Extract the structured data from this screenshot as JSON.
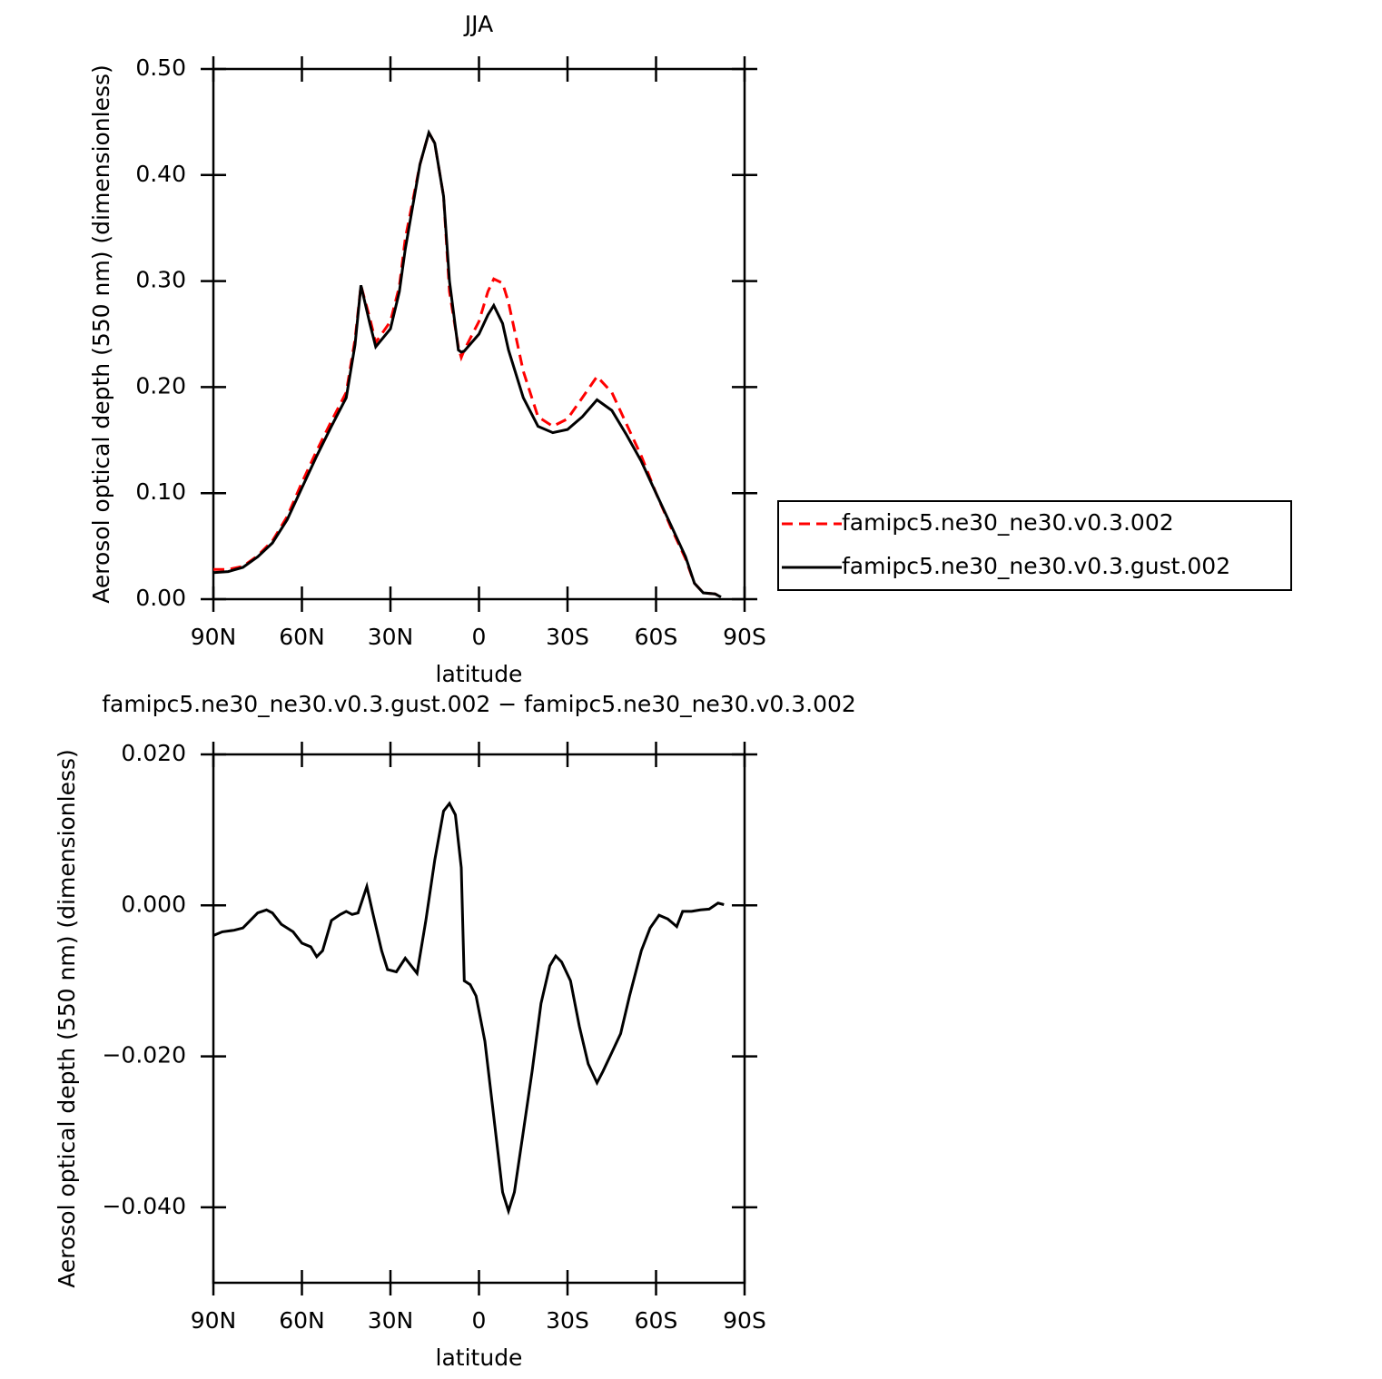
{
  "chart_data": [
    {
      "type": "line",
      "title": "JJA",
      "xlabel": "latitude",
      "ylabel": "Aerosol optical depth (550 nm) (dimensionless)",
      "x": [
        90,
        85,
        80,
        75,
        70,
        65,
        60,
        55,
        50,
        45,
        42,
        40,
        37,
        35,
        30,
        27,
        25,
        20,
        17,
        15,
        12,
        10,
        7,
        6,
        5,
        0,
        -3,
        -5,
        -8,
        -10,
        -15,
        -20,
        -25,
        -30,
        -35,
        -40,
        -45,
        -50,
        -55,
        -60,
        -65,
        -70,
        -73,
        -76,
        -80,
        -82
      ],
      "series": [
        {
          "name": "famipc5.ne30_ne30.v0.3.002",
          "color": "#ff0000",
          "dashed": true,
          "values": [
            0.028,
            0.028,
            0.031,
            0.041,
            0.055,
            0.078,
            0.11,
            0.14,
            0.168,
            0.195,
            0.245,
            0.296,
            0.265,
            0.242,
            0.262,
            0.295,
            0.34,
            0.41,
            0.44,
            0.43,
            0.38,
            0.29,
            0.238,
            0.228,
            0.235,
            0.262,
            0.29,
            0.302,
            0.298,
            0.28,
            0.215,
            0.172,
            0.163,
            0.17,
            0.19,
            0.21,
            0.195,
            0.165,
            0.135,
            0.1,
            0.068,
            0.038,
            0.015,
            0.006,
            0.005,
            0.002
          ]
        },
        {
          "name": "famipc5.ne30_ne30.v0.3.gust.002",
          "color": "#000000",
          "dashed": false,
          "values": [
            0.025,
            0.026,
            0.03,
            0.04,
            0.053,
            0.075,
            0.105,
            0.135,
            0.163,
            0.19,
            0.24,
            0.296,
            0.26,
            0.238,
            0.255,
            0.29,
            0.33,
            0.41,
            0.44,
            0.43,
            0.38,
            0.3,
            0.235,
            0.233,
            0.234,
            0.25,
            0.268,
            0.277,
            0.26,
            0.235,
            0.19,
            0.163,
            0.157,
            0.16,
            0.172,
            0.188,
            0.178,
            0.155,
            0.13,
            0.1,
            0.07,
            0.04,
            0.015,
            0.006,
            0.005,
            0.002
          ]
        }
      ],
      "xlim": [
        90,
        -90
      ],
      "ylim": [
        0,
        0.5
      ],
      "xticks": [
        {
          "value": 90,
          "label": "90N"
        },
        {
          "value": 60,
          "label": "60N"
        },
        {
          "value": 30,
          "label": "30N"
        },
        0,
        {
          "value": -30,
          "label": "30S"
        },
        {
          "value": -60,
          "label": "60S"
        },
        {
          "value": -90,
          "label": "90S"
        }
      ],
      "yticks": [
        {
          "value": 0,
          "label": "0.00"
        },
        {
          "value": 0.1,
          "label": "0.10"
        },
        {
          "value": 0.2,
          "label": "0.20"
        },
        {
          "value": 0.3,
          "label": "0.30"
        },
        {
          "value": 0.4,
          "label": "0.40"
        },
        {
          "value": 0.5,
          "label": "0.50"
        }
      ],
      "legend": "right"
    },
    {
      "type": "line",
      "title": "famipc5.ne30_ne30.v0.3.gust.002 − famipc5.ne30_ne30.v0.3.002",
      "xlabel": "latitude",
      "ylabel": "Aerosol optical depth (550 nm) (dimensionless)",
      "x": [
        90,
        87,
        83,
        80,
        75,
        72,
        70,
        67,
        63,
        60,
        57,
        55,
        53,
        50,
        47,
        45,
        43,
        41,
        38,
        36,
        33,
        31,
        28,
        25,
        21,
        18,
        15,
        12,
        10,
        8,
        6,
        5,
        3,
        1,
        -2,
        -5,
        -8,
        -10,
        -12,
        -15,
        -18,
        -21,
        -24,
        -26,
        -28,
        -31,
        -34,
        -37,
        -40,
        -42,
        -45,
        -48,
        -51,
        -55,
        -58,
        -61,
        -64,
        -67,
        -69,
        -72,
        -75,
        -78,
        -81,
        -83
      ],
      "series": [
        {
          "color": "#000000",
          "dashed": false,
          "values": [
            -0.004,
            -0.0035,
            -0.0033,
            -0.003,
            -0.001,
            -0.0006,
            -0.001,
            -0.0025,
            -0.0035,
            -0.005,
            -0.0055,
            -0.0068,
            -0.006,
            -0.002,
            -0.0012,
            -0.0008,
            -0.0012,
            -0.001,
            0.0025,
            -0.001,
            -0.006,
            -0.0085,
            -0.0088,
            -0.007,
            -0.009,
            -0.002,
            0.006,
            0.0125,
            0.0135,
            0.012,
            0.005,
            -0.01,
            -0.0105,
            -0.012,
            -0.018,
            -0.028,
            -0.038,
            -0.0405,
            -0.038,
            -0.03,
            -0.022,
            -0.013,
            -0.008,
            -0.0067,
            -0.0075,
            -0.01,
            -0.016,
            -0.021,
            -0.0235,
            -0.022,
            -0.0195,
            -0.017,
            -0.012,
            -0.006,
            -0.003,
            -0.0013,
            -0.0018,
            -0.0028,
            -0.0008,
            -0.0008,
            -0.0006,
            -0.0005,
            0.0003,
            0.0001
          ]
        }
      ],
      "xlim": [
        90,
        -90
      ],
      "ylim": [
        -0.05,
        0.02
      ],
      "xticks": [
        {
          "value": 90,
          "label": "90N"
        },
        {
          "value": 60,
          "label": "60N"
        },
        {
          "value": 30,
          "label": "30N"
        },
        0,
        {
          "value": -30,
          "label": "30S"
        },
        {
          "value": -60,
          "label": "60S"
        },
        {
          "value": -90,
          "label": "90S"
        }
      ],
      "yticks": [
        {
          "value": -0.04,
          "label": "−0.040"
        },
        {
          "value": -0.02,
          "label": "−0.020"
        },
        {
          "value": 0,
          "label": "0.000"
        },
        {
          "value": 0.02,
          "label": "0.020"
        }
      ]
    }
  ]
}
